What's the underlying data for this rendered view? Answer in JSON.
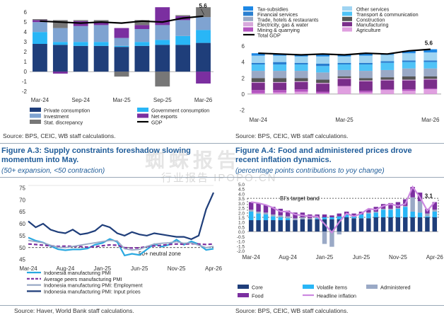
{
  "charts": {
    "a1": {
      "type": "bar",
      "x_ticks": [
        "Mar-24",
        "Sep-24",
        "Mar-25",
        "Sep-25",
        "Mar-26"
      ],
      "y_ticks": [
        "-2",
        "-1",
        "0",
        "1",
        "2",
        "3",
        "4",
        "5",
        "6"
      ],
      "ylim": [
        -2.2,
        6.8
      ],
      "end_label": "5.6",
      "legend": [
        {
          "name": "Private consumption",
          "color": "#1f3e7a"
        },
        {
          "name": "Government consumption",
          "color": "#29b6f6"
        },
        {
          "name": "Investment",
          "color": "#7fa3d1"
        },
        {
          "name": "Net exports",
          "color": "#7b2fa0"
        },
        {
          "name": "Stat. discrepancy",
          "color": "#777777"
        },
        {
          "name": "GDP",
          "color": "#000000"
        }
      ]
    },
    "a2": {
      "type": "bar",
      "x_ticks": [
        "Mar-24",
        "Mar-25",
        "Mar-26"
      ],
      "y_ticks": [
        "-2",
        "0",
        "2",
        "4",
        "6"
      ],
      "ylim": [
        -2.4,
        6.8
      ],
      "end_label": "5.6",
      "legend": [
        {
          "name": "Tax-subsidies",
          "color": "#1e88e5"
        },
        {
          "name": "Other services",
          "color": "#9fd4f2"
        },
        {
          "name": "Financial services",
          "color": "#2a7fd0"
        },
        {
          "name": "Transport & communication",
          "color": "#4fc3f7"
        },
        {
          "name": "Trade, hotels & restaurants",
          "color": "#9aa9c6"
        },
        {
          "name": "Construction",
          "color": "#555555"
        },
        {
          "name": "Electricity, gas & water",
          "color": "#d7a8dc"
        },
        {
          "name": "Manufacturing",
          "color": "#7a2d8a"
        },
        {
          "name": "Mining & quarrying",
          "color": "#b454c0"
        },
        {
          "name": "Agriculture",
          "color": "#e09fe0"
        },
        {
          "name": "Total GDP",
          "color": "#000000"
        }
      ]
    },
    "a3": {
      "type": "line",
      "x_ticks": [
        "Mar-24",
        "Aug-24",
        "Jan-25",
        "Jun-25",
        "Nov-25",
        "Apr-26"
      ],
      "y_ticks": [
        "45",
        "50",
        "55",
        "60",
        "65",
        "70",
        "75"
      ],
      "ylim": [
        44,
        76
      ],
      "annotation": "50+ neutral zone",
      "legend": [
        {
          "name": "Indonesia manufacturing PMI",
          "color": "#29a8e0"
        },
        {
          "name": "Average peers manufacturing PMI",
          "color": "#7b2fa0"
        },
        {
          "name": "Indonesia manufacturing PMI: Employment",
          "color": "#9aa9c6"
        },
        {
          "name": "Indonesia manufacturing PMI: Input prices",
          "color": "#1f3e7a"
        }
      ]
    },
    "a4": {
      "type": "bar",
      "x_ticks": [
        "Mar-24",
        "Aug-24",
        "Jan-25",
        "Jun-25",
        "Nov-25",
        "Apr-26"
      ],
      "y_ticks": [
        "-2.0",
        "-1.5",
        "-1.0",
        "-0.5",
        "0.0",
        "0.5",
        "1.0",
        "1.5",
        "2.0",
        "2.5",
        "3.0",
        "3.5",
        "4.0",
        "4.5",
        "5.0"
      ],
      "ylim": [
        -2.0,
        5.0
      ],
      "band_label": "BI's target band",
      "end_label": "3.1",
      "legend": [
        {
          "name": "Core",
          "color": "#1f3e7a"
        },
        {
          "name": "Volatile items",
          "color": "#29b6f6"
        },
        {
          "name": "Administered",
          "color": "#9aa9c6"
        },
        {
          "name": "Food",
          "color": "#7b2fa0"
        },
        {
          "name": "Headline inflation",
          "color": "#cc88e0"
        }
      ]
    }
  },
  "chart_data": [
    {
      "type": "bar",
      "categories": [
        "Mar-24",
        "Jun-24",
        "Sep-24",
        "Dec-24",
        "Mar-25",
        "Jun-25",
        "Sep-25",
        "Dec-25",
        "Mar-26"
      ],
      "series": [
        {
          "name": "Private consumption",
          "values": [
            2.8,
            2.7,
            2.6,
            2.6,
            2.5,
            2.6,
            2.7,
            2.7,
            2.9
          ]
        },
        {
          "name": "Government consumption",
          "values": [
            1.2,
            0.3,
            0.4,
            0.4,
            0.1,
            0.4,
            0.5,
            0.9,
            1.3
          ]
        },
        {
          "name": "Investment",
          "values": [
            1.0,
            1.4,
            1.6,
            1.7,
            0.8,
            1.3,
            1.5,
            1.6,
            1.3
          ]
        },
        {
          "name": "Net exports",
          "values": [
            0.2,
            -0.2,
            0.5,
            0.3,
            1.0,
            0.4,
            1.8,
            0.4,
            -1.2
          ]
        },
        {
          "name": "Stat. discrepancy",
          "values": [
            0.1,
            0.8,
            0.1,
            0.2,
            -0.5,
            0.5,
            -1.5,
            0.1,
            1.0
          ]
        },
        {
          "name": "GDP",
          "values": [
            5.1,
            5.0,
            4.9,
            5.0,
            4.9,
            5.1,
            5.0,
            5.4,
            5.6
          ]
        }
      ]
    },
    {
      "type": "bar",
      "categories": [
        "Mar-24",
        "Jun-24",
        "Sep-24",
        "Dec-24",
        "Mar-25",
        "Jun-25",
        "Sep-25",
        "Dec-25",
        "Mar-26"
      ],
      "series": [
        {
          "name": "Agriculture",
          "values": [
            0.1,
            0.2,
            0.3,
            0.1,
            1.0,
            0.2,
            0.5,
            0.4,
            0.6
          ]
        },
        {
          "name": "Mining & quarrying",
          "values": [
            0.4,
            0.3,
            0.3,
            0.2,
            0.0,
            0.2,
            0.1,
            0.2,
            0.1
          ]
        },
        {
          "name": "Manufacturing",
          "values": [
            0.9,
            0.9,
            0.9,
            1.0,
            0.9,
            1.2,
            1.1,
            1.1,
            1.1
          ]
        },
        {
          "name": "Electricity, gas & water",
          "values": [
            0.1,
            0.1,
            0.1,
            0.1,
            0.1,
            0.1,
            0.1,
            0.1,
            0.1
          ]
        },
        {
          "name": "Construction",
          "values": [
            0.5,
            0.5,
            0.4,
            0.4,
            0.2,
            0.3,
            0.3,
            0.4,
            0.3
          ]
        },
        {
          "name": "Trade, hotels & restaurants",
          "values": [
            0.9,
            0.9,
            0.9,
            0.9,
            0.8,
            0.9,
            0.9,
            1.0,
            1.0
          ]
        },
        {
          "name": "Transport & communication",
          "values": [
            0.8,
            0.8,
            0.8,
            0.8,
            0.7,
            0.8,
            0.9,
            0.8,
            0.8
          ]
        },
        {
          "name": "Financial services",
          "values": [
            0.2,
            0.3,
            0.2,
            0.3,
            0.2,
            0.2,
            0.2,
            0.2,
            0.2
          ]
        },
        {
          "name": "Other services",
          "values": [
            0.9,
            0.8,
            0.8,
            0.9,
            0.8,
            0.9,
            0.8,
            0.9,
            1.0
          ]
        },
        {
          "name": "Tax-subsidies",
          "values": [
            0.3,
            0.2,
            0.2,
            0.3,
            0.2,
            0.3,
            0.1,
            0.3,
            0.4
          ]
        },
        {
          "name": "Total GDP",
          "values": [
            5.1,
            5.0,
            4.9,
            5.0,
            4.9,
            5.1,
            5.0,
            5.4,
            5.6
          ]
        }
      ]
    },
    {
      "type": "line",
      "x": [
        "Mar-24",
        "Apr-24",
        "May-24",
        "Jun-24",
        "Jul-24",
        "Aug-24",
        "Sep-24",
        "Oct-24",
        "Nov-24",
        "Dec-24",
        "Jan-25",
        "Feb-25",
        "Mar-25",
        "Apr-25",
        "May-25",
        "Jun-25",
        "Jul-25",
        "Aug-25",
        "Sep-25",
        "Oct-25",
        "Nov-25",
        "Dec-25",
        "Jan-26",
        "Feb-26",
        "Mar-26",
        "Apr-26"
      ],
      "series": [
        {
          "name": "Indonesia manufacturing PMI",
          "values": [
            54.2,
            52.9,
            52.1,
            50.7,
            49.3,
            48.9,
            49.2,
            49.2,
            49.6,
            51.2,
            51.9,
            53.6,
            52.4,
            46.7,
            47.4,
            46.9,
            49.2,
            51.5,
            50.4,
            51.2,
            53.3,
            51.2,
            52.6,
            51.4,
            49.0,
            49.5
          ]
        },
        {
          "name": "Average peers manufacturing PMI",
          "values": [
            51.5,
            51.3,
            51.0,
            50.8,
            50.5,
            50.6,
            50.5,
            50.4,
            50.2,
            50.4,
            50.8,
            51.1,
            51.0,
            50.0,
            49.8,
            49.9,
            50.4,
            50.7,
            51.0,
            51.3,
            51.5,
            51.4,
            51.6,
            51.5,
            51.3,
            51.5
          ]
        },
        {
          "name": "Indonesia manufacturing PMI: Employment",
          "values": [
            53.0,
            52.5,
            52.0,
            51.0,
            50.2,
            50.0,
            50.5,
            51.0,
            51.5,
            52.0,
            52.5,
            53.0,
            52.8,
            49.5,
            49.0,
            49.2,
            50.5,
            51.5,
            51.8,
            52.0,
            52.5,
            51.8,
            52.0,
            51.0,
            50.0,
            50.5
          ]
        },
        {
          "name": "Indonesia manufacturing PMI: Input prices",
          "values": [
            61.0,
            58.5,
            60.0,
            57.5,
            56.5,
            56.0,
            57.5,
            55.5,
            56.0,
            57.0,
            59.5,
            58.5,
            56.0,
            55.0,
            56.5,
            55.5,
            55.0,
            56.0,
            55.5,
            55.0,
            54.5,
            54.5,
            53.5,
            55.0,
            66.0,
            73.0
          ]
        }
      ],
      "ylim": [
        44,
        76
      ]
    },
    {
      "type": "bar",
      "x": [
        "Mar-24",
        "Apr-24",
        "May-24",
        "Jun-24",
        "Jul-24",
        "Aug-24",
        "Sep-24",
        "Oct-24",
        "Nov-24",
        "Dec-24",
        "Jan-25",
        "Feb-25",
        "Mar-25",
        "Apr-25",
        "May-25",
        "Jun-25",
        "Jul-25",
        "Aug-25",
        "Sep-25",
        "Oct-25",
        "Nov-25",
        "Dec-25",
        "Jan-26",
        "Feb-26",
        "Mar-26",
        "Apr-26"
      ],
      "series": [
        {
          "name": "Core",
          "values": [
            1.2,
            1.2,
            1.2,
            1.2,
            1.2,
            1.2,
            1.2,
            1.3,
            1.3,
            1.3,
            1.3,
            1.3,
            1.3,
            1.5,
            1.4,
            1.4,
            1.4,
            1.5,
            1.5,
            1.5,
            1.5,
            1.5,
            1.5,
            1.5,
            1.5,
            1.5
          ]
        },
        {
          "name": "Volatile items",
          "values": [
            0.9,
            0.7,
            0.6,
            0.4,
            0.3,
            0.2,
            0.0,
            0.0,
            0.0,
            0.1,
            0.2,
            0.2,
            0.3,
            0.3,
            0.2,
            0.4,
            0.5,
            0.5,
            0.8,
            0.8,
            0.9,
            1.1,
            0.6,
            0.5,
            0.1,
            0.6
          ]
        },
        {
          "name": "Administered",
          "values": [
            0.2,
            0.2,
            0.2,
            0.2,
            0.2,
            0.2,
            0.2,
            0.2,
            0.1,
            0.1,
            -1.3,
            -1.6,
            -0.3,
            0.0,
            0.0,
            0.0,
            0.1,
            0.1,
            0.1,
            0.1,
            0.1,
            0.1,
            1.5,
            1.2,
            0.3,
            0.2
          ]
        },
        {
          "name": "Food",
          "values": [
            0.8,
            0.9,
            0.8,
            0.8,
            0.7,
            0.6,
            0.6,
            0.5,
            0.4,
            0.3,
            0.3,
            0.2,
            0.3,
            0.3,
            0.3,
            0.3,
            0.3,
            0.5,
            0.5,
            0.6,
            0.6,
            0.7,
            1.1,
            0.9,
            0.5,
            0.8
          ]
        },
        {
          "name": "Headline inflation",
          "values": [
            3.1,
            3.0,
            2.8,
            2.5,
            2.1,
            2.1,
            1.8,
            1.7,
            1.6,
            1.6,
            0.8,
            -0.1,
            1.0,
            1.9,
            1.6,
            1.9,
            2.4,
            2.3,
            2.7,
            2.9,
            2.7,
            2.9,
            4.7,
            3.6,
            2.2,
            3.1
          ]
        }
      ],
      "band": [
        1.5,
        3.5
      ],
      "ylim": [
        -2.0,
        5.0
      ]
    }
  ],
  "texts": {
    "source_top_left": "Source: BPS, CEIC, WB staff calculations.",
    "source_top_right": "Source: BPS, CEIC, WB staff calculations.",
    "fig3_title_line1": "Figure A.3: Supply constraints foreshadow slowing",
    "fig3_title_line2": "momentum into May.",
    "fig3_subtitle": "(50+ expansion, <50 contraction)",
    "fig4_title_line1": "Figure A.4: Food and administered prices drove",
    "fig4_title_line2": "recent inflation dynamics.",
    "fig4_subtitle": "(percentage points contributions to yoy change)",
    "source_bottom_left": "Source: Haver, World Bank staff calculations.",
    "source_bottom_right": "Source: BPS, CEIC, WB staff calculations.",
    "watermark_main": "蜘蛛报告",
    "watermark_sub": "行业报告 IPOPO.CN"
  }
}
